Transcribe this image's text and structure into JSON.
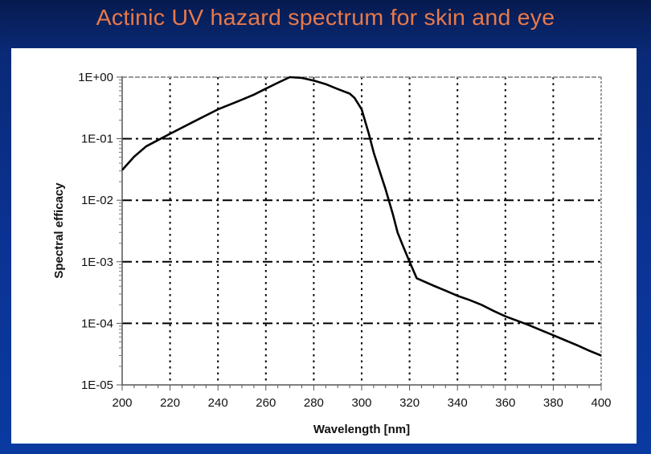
{
  "slide": {
    "title": "Actinic UV hazard spectrum for skin and eye",
    "title_color": "#e8794a",
    "background_color": "#0b3394"
  },
  "chart_data": {
    "type": "line",
    "title": "Actinic UV hazard spectrum for skin and eye",
    "xlabel": "Wavelength [nm]",
    "ylabel": "Spectral efficacy",
    "xlim": [
      200,
      400
    ],
    "ylim": [
      1e-05,
      1
    ],
    "yscale": "log",
    "x_ticks": [
      200,
      220,
      240,
      260,
      280,
      300,
      320,
      340,
      360,
      380,
      400
    ],
    "x_tick_labels": [
      "200",
      "220",
      "240",
      "260",
      "280",
      "300",
      "320",
      "340",
      "360",
      "380",
      "400"
    ],
    "y_ticks": [
      1,
      0.1,
      0.01,
      0.001,
      0.0001,
      1e-05
    ],
    "y_tick_labels": [
      "1E+00",
      "1E-01",
      "1E-02",
      "1E-03",
      "1E-04",
      "1E-05"
    ],
    "grid": true,
    "legend": null,
    "series": [
      {
        "name": "Spectral efficacy",
        "color": "#000000",
        "x": [
          200,
          205,
          210,
          215,
          220,
          230,
          240,
          250,
          255,
          260,
          265,
          270,
          275,
          280,
          285,
          290,
          295,
          297,
          300,
          303,
          305,
          308,
          310,
          313,
          315,
          317,
          320,
          323,
          325,
          330,
          335,
          340,
          345,
          350,
          355,
          360,
          365,
          370,
          375,
          380,
          385,
          390,
          395,
          400
        ],
        "values": [
          0.031,
          0.051,
          0.075,
          0.095,
          0.12,
          0.19,
          0.3,
          0.43,
          0.52,
          0.65,
          0.81,
          1.0,
          0.97,
          0.88,
          0.77,
          0.64,
          0.54,
          0.46,
          0.3,
          0.12,
          0.06,
          0.026,
          0.015,
          0.006,
          0.003,
          0.0019,
          0.001,
          0.00054,
          0.0005,
          0.00041,
          0.00034,
          0.00028,
          0.00024,
          0.0002,
          0.00016,
          0.00013,
          0.00011,
          9.3e-05,
          7.7e-05,
          6.4e-05,
          5.3e-05,
          4.4e-05,
          3.6e-05,
          3e-05
        ]
      }
    ]
  }
}
